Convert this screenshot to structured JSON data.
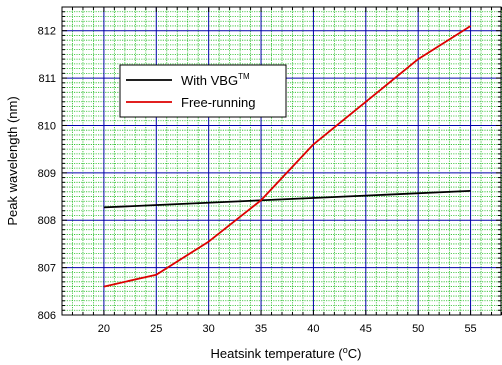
{
  "chart_data": {
    "type": "line",
    "title": "",
    "xlabel": "Heatsink temperature (",
    "xlabel_degree": "o",
    "xlabel_unit": "C)",
    "ylabel": "Peak wavelength (nm)",
    "xlim": [
      16,
      58
    ],
    "ylim": [
      806,
      812.5
    ],
    "x_ticks": [
      20,
      25,
      30,
      35,
      40,
      45,
      50,
      55
    ],
    "y_ticks": [
      806,
      807,
      808,
      809,
      810,
      811,
      812
    ],
    "x_minor_step": 1,
    "y_minor_step": 0.1,
    "grid": true,
    "legend_placement": "upper-left inside",
    "series": [
      {
        "name": "With VBG",
        "name_superscript": "TM",
        "color": "#000000",
        "x": [
          20,
          55
        ],
        "values": [
          808.27,
          808.62
        ]
      },
      {
        "name": "Free-running",
        "color": "#dd0000",
        "x": [
          20,
          25,
          30,
          35,
          40,
          45,
          50,
          55
        ],
        "values": [
          806.6,
          806.85,
          807.55,
          808.42,
          809.6,
          810.5,
          811.4,
          812.1
        ]
      }
    ],
    "colors": {
      "minor_grid": "#22bb22",
      "major_grid": "#0000aa",
      "background": "#ffffff"
    }
  }
}
